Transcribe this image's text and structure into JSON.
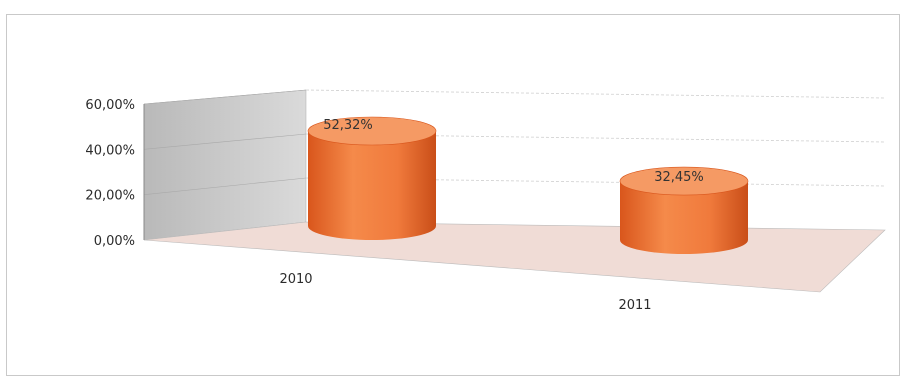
{
  "chart_data": {
    "type": "bar",
    "style": "3d-cylinder",
    "categories": [
      "2010",
      "2011"
    ],
    "values": [
      52.32,
      32.45
    ],
    "data_labels": [
      "52,32%",
      "32,45%"
    ],
    "y_ticks": [
      "0,00%",
      "20,00%",
      "40,00%",
      "60,00%"
    ],
    "ylim": [
      0,
      60
    ],
    "grid": true,
    "legend": "none",
    "colors": {
      "bar": "#f07a3c",
      "bar_top": "#f59a64",
      "bar_dark": "#d9561c",
      "wall": "#c8c8c8",
      "floor": "#f0dcd6",
      "grid": "#cfcfcf"
    }
  }
}
